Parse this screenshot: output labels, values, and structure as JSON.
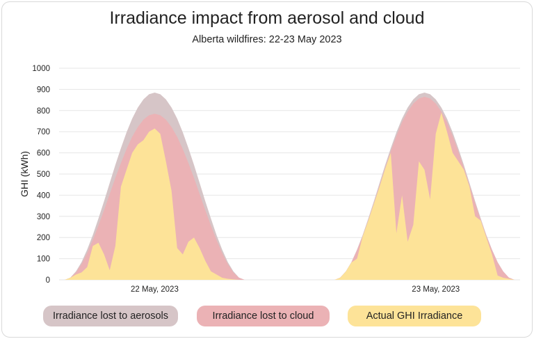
{
  "chart_data": {
    "type": "area",
    "title": "Irradiance impact from aerosol and cloud",
    "subtitle": "Alberta wildfires: 22-23 May 2023",
    "ylabel": "GHI (kWh)",
    "xlabel": "",
    "ylim": [
      0,
      1000
    ],
    "yticks": [
      0,
      100,
      200,
      300,
      400,
      500,
      600,
      700,
      800,
      900,
      1000
    ],
    "xlim_hours": [
      3.5,
      44.5
    ],
    "xticks": [
      {
        "hour": 12,
        "label": "22 May, 2023"
      },
      {
        "hour": 37,
        "label": "23 May, 2023"
      }
    ],
    "grid": true,
    "legend_placement": "bottom",
    "legend": [
      {
        "label": "Irradiance lost to aerosols",
        "color": "#d6c5c7"
      },
      {
        "label": "Irradiance lost to cloud",
        "color": "#ebb2b5"
      },
      {
        "label": "Actual GHI Irradiance",
        "color": "#fde398"
      }
    ],
    "days": [
      {
        "label": "22 May, 2023",
        "start_hour": 4,
        "step_hours": 0.5,
        "clear_sky": [
          0,
          11,
          40,
          84,
          143,
          212,
          290,
          372,
          458,
          543,
          622,
          697,
          762,
          814,
          853,
          877,
          885,
          877,
          853,
          814,
          762,
          697,
          622,
          543,
          458,
          372,
          290,
          212,
          143,
          84,
          40,
          11,
          0
        ],
        "aerosol_clear_sky": [
          0,
          10,
          35,
          75,
          127,
          188,
          257,
          330,
          406,
          482,
          552,
          618,
          676,
          722,
          757,
          778,
          785,
          778,
          757,
          722,
          676,
          618,
          552,
          482,
          406,
          330,
          257,
          188,
          127,
          75,
          35,
          10,
          0
        ],
        "actual": [
          0,
          10,
          25,
          35,
          60,
          160,
          175,
          120,
          45,
          160,
          440,
          520,
          600,
          640,
          660,
          700,
          715,
          690,
          560,
          420,
          150,
          120,
          180,
          200,
          150,
          90,
          40,
          25,
          10,
          5,
          2,
          0,
          0
        ]
      },
      {
        "label": "23 May, 2023",
        "start_hour": 28,
        "step_hours": 0.5,
        "clear_sky": [
          0,
          11,
          40,
          84,
          143,
          212,
          290,
          372,
          458,
          543,
          622,
          697,
          762,
          814,
          853,
          877,
          885,
          877,
          853,
          814,
          762,
          697,
          622,
          543,
          458,
          372,
          290,
          212,
          143,
          84,
          40,
          11,
          0
        ],
        "aerosol_clear_sky": [
          0,
          11,
          39,
          82,
          140,
          207,
          283,
          363,
          447,
          530,
          608,
          681,
          745,
          795,
          833,
          857,
          865,
          857,
          833,
          795,
          745,
          681,
          608,
          530,
          447,
          363,
          283,
          207,
          140,
          82,
          39,
          11,
          0
        ],
        "actual": [
          0,
          10,
          39,
          82,
          100,
          205,
          280,
          360,
          440,
          525,
          600,
          220,
          400,
          180,
          260,
          560,
          520,
          380,
          690,
          790,
          700,
          600,
          560,
          520,
          440,
          300,
          280,
          200,
          120,
          20,
          10,
          5,
          0
        ]
      }
    ]
  }
}
